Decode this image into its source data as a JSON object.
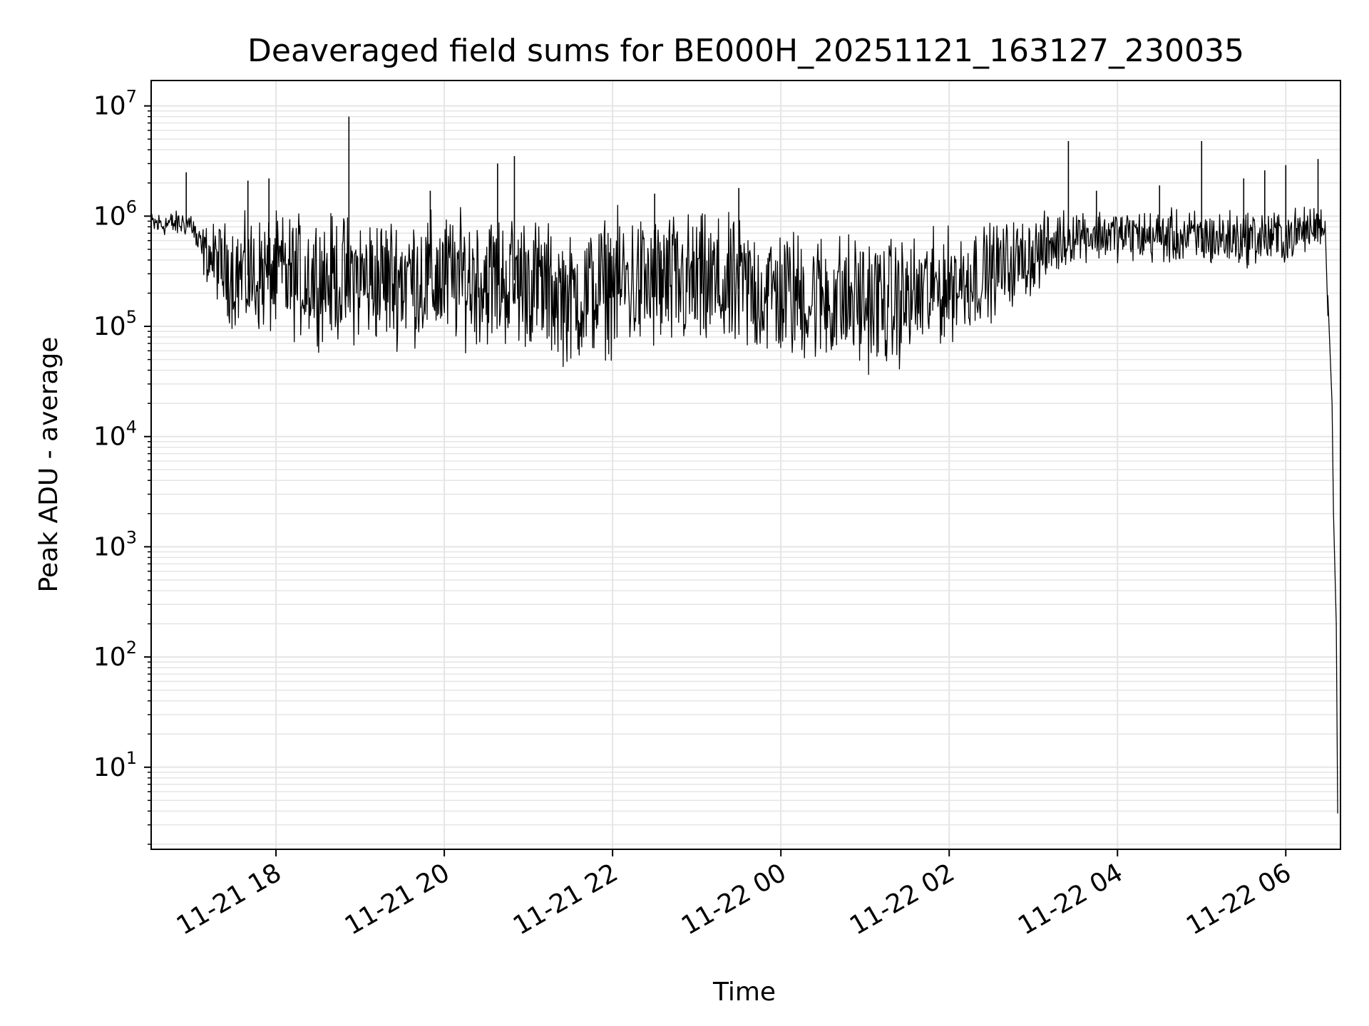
{
  "chart_data": {
    "type": "line",
    "title": "Deaveraged field sums for BE000H_20251121_163127_230035",
    "xlabel": "Time",
    "ylabel": "Peak ADU - average",
    "yscale": "log",
    "grid": true,
    "line_color": "#000000",
    "grid_color": "#e5e5e5",
    "xlim": [
      "2025-11-21 16:31",
      "2025-11-22 06:39"
    ],
    "ylim": [
      1.8,
      17000000
    ],
    "x_ticks": [
      {
        "t": "2025-11-21 18:00",
        "label": "11-21 18"
      },
      {
        "t": "2025-11-21 20:00",
        "label": "11-21 20"
      },
      {
        "t": "2025-11-21 22:00",
        "label": "11-21 22"
      },
      {
        "t": "2025-11-22 00:00",
        "label": "11-22 00"
      },
      {
        "t": "2025-11-22 02:00",
        "label": "11-22 02"
      },
      {
        "t": "2025-11-22 04:00",
        "label": "11-22 04"
      },
      {
        "t": "2025-11-22 06:00",
        "label": "11-22 06"
      }
    ],
    "y_ticks": [
      {
        "value": 10,
        "base": "10",
        "exp": "1"
      },
      {
        "value": 100,
        "base": "10",
        "exp": "2"
      },
      {
        "value": 1000,
        "base": "10",
        "exp": "3"
      },
      {
        "value": 10000,
        "base": "10",
        "exp": "4"
      },
      {
        "value": 100000,
        "base": "10",
        "exp": "5"
      },
      {
        "value": 1000000,
        "base": "10",
        "exp": "6"
      },
      {
        "value": 10000000,
        "base": "10",
        "exp": "7"
      }
    ],
    "series": [
      {
        "envelope": [
          {
            "t": "2025-11-21 16:31",
            "low": 620000,
            "high": 1150000
          },
          {
            "t": "2025-11-21 17:00",
            "low": 620000,
            "high": 1200000
          },
          {
            "t": "2025-11-21 17:05",
            "low": 300000,
            "high": 900000
          },
          {
            "t": "2025-11-21 17:30",
            "low": 70000,
            "high": 1200000
          },
          {
            "t": "2025-11-21 18:00",
            "low": 60000,
            "high": 1400000
          },
          {
            "t": "2025-11-21 19:00",
            "low": 50000,
            "high": 1400000
          },
          {
            "t": "2025-11-21 20:00",
            "low": 50000,
            "high": 1500000
          },
          {
            "t": "2025-11-21 21:00",
            "low": 45000,
            "high": 1500000
          },
          {
            "t": "2025-11-21 21:30",
            "low": 32000,
            "high": 900000
          },
          {
            "t": "2025-11-21 22:00",
            "low": 40000,
            "high": 1500000
          },
          {
            "t": "2025-11-21 23:00",
            "low": 40000,
            "high": 1500000
          },
          {
            "t": "2025-11-22 00:00",
            "low": 35000,
            "high": 1100000
          },
          {
            "t": "2025-11-22 01:00",
            "low": 30000,
            "high": 950000
          },
          {
            "t": "2025-11-22 01:20",
            "low": 30000,
            "high": 850000
          },
          {
            "t": "2025-11-22 02:00",
            "low": 55000,
            "high": 1000000
          },
          {
            "t": "2025-11-22 03:00",
            "low": 160000,
            "high": 1200000
          },
          {
            "t": "2025-11-22 03:30",
            "low": 350000,
            "high": 1400000
          },
          {
            "t": "2025-11-22 04:00",
            "low": 350000,
            "high": 1300000
          },
          {
            "t": "2025-11-22 05:00",
            "low": 300000,
            "high": 1300000
          },
          {
            "t": "2025-11-22 06:00",
            "low": 320000,
            "high": 1300000
          },
          {
            "t": "2025-11-22 06:25",
            "low": 500000,
            "high": 1400000
          },
          {
            "t": "2025-11-22 06:28",
            "low": 600000,
            "high": 1100000
          }
        ],
        "spikes": [
          {
            "t": "2025-11-21 16:56",
            "value": 2500000
          },
          {
            "t": "2025-11-21 17:55",
            "value": 2200000
          },
          {
            "t": "2025-11-21 17:40",
            "value": 2100000
          },
          {
            "t": "2025-11-21 18:52",
            "value": 8000000
          },
          {
            "t": "2025-11-21 19:50",
            "value": 1700000
          },
          {
            "t": "2025-11-21 20:38",
            "value": 3000000
          },
          {
            "t": "2025-11-21 20:50",
            "value": 3500000
          },
          {
            "t": "2025-11-21 22:30",
            "value": 1600000
          },
          {
            "t": "2025-11-21 23:30",
            "value": 1800000
          },
          {
            "t": "2025-11-22 03:25",
            "value": 4800000
          },
          {
            "t": "2025-11-22 03:45",
            "value": 1700000
          },
          {
            "t": "2025-11-22 04:30",
            "value": 1900000
          },
          {
            "t": "2025-11-22 05:00",
            "value": 4800000
          },
          {
            "t": "2025-11-22 05:30",
            "value": 2200000
          },
          {
            "t": "2025-11-22 05:45",
            "value": 2600000
          },
          {
            "t": "2025-11-22 06:00",
            "value": 2900000
          },
          {
            "t": "2025-11-22 06:23",
            "value": 3300000
          }
        ],
        "tail": [
          {
            "t": "2025-11-22 06:28",
            "value": 900000
          },
          {
            "t": "2025-11-22 06:30",
            "value": 125000
          },
          {
            "t": "2025-11-22 06:30",
            "value": 190000
          },
          {
            "t": "2025-11-22 06:33",
            "value": 20000
          },
          {
            "t": "2025-11-22 06:34",
            "value": 2000
          },
          {
            "t": "2025-11-22 06:36",
            "value": 200
          },
          {
            "t": "2025-11-22 06:37",
            "value": 3.8
          }
        ]
      }
    ]
  }
}
